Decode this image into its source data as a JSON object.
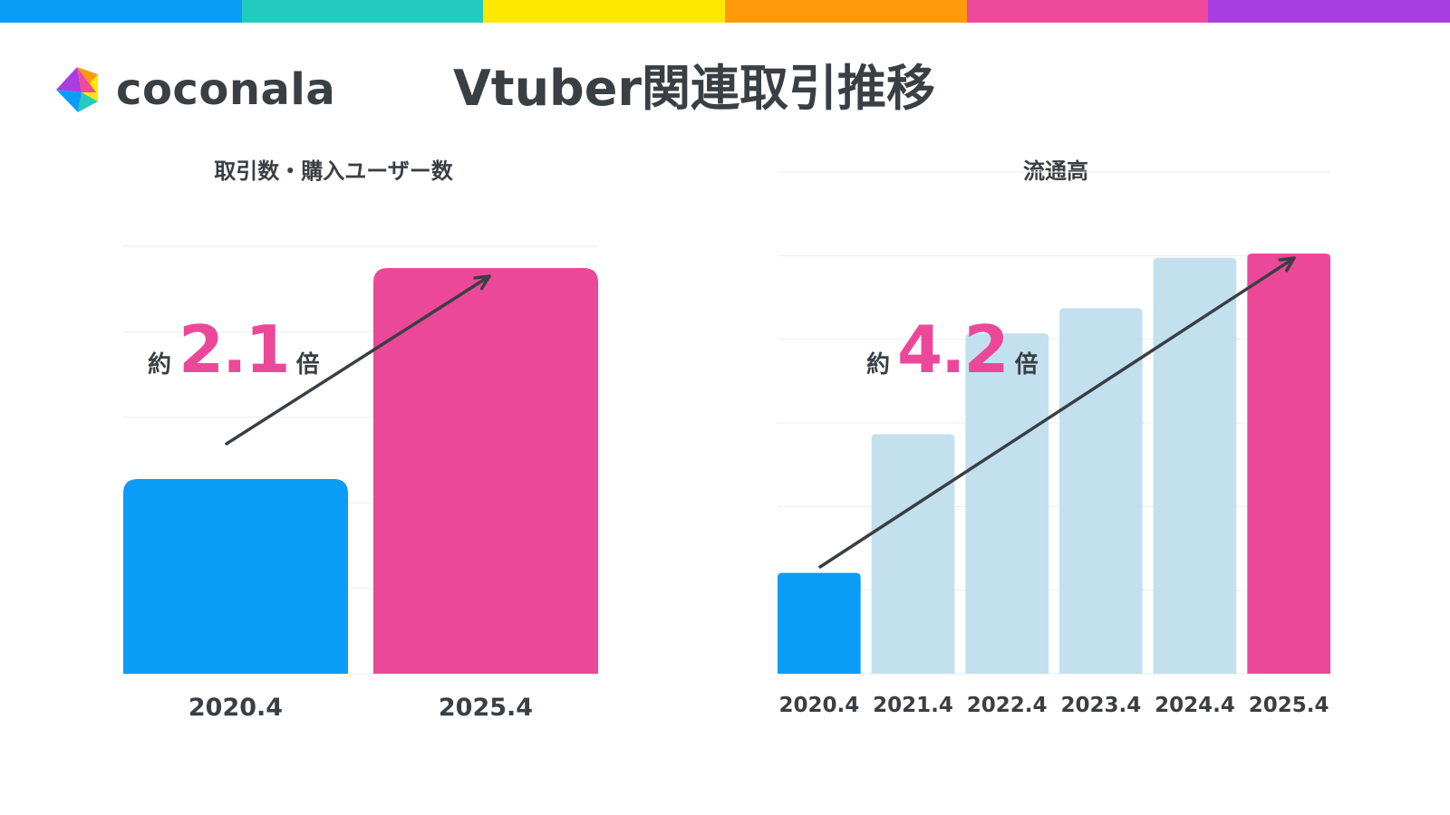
{
  "header": {
    "brand": "coconala",
    "title": "Vtuber関連取引推移",
    "strip_colors": [
      "#0b9cf7",
      "#22cbbd",
      "#ffe800",
      "#ff9a0a",
      "#ee4a9c",
      "#a93ee0"
    ],
    "logo_colors": [
      "#ff9a0a",
      "#ffe800",
      "#22cbbd",
      "#0b9cf7",
      "#a93ee0",
      "#ee4a9c"
    ]
  },
  "colors": {
    "blue": "#0b9cf7",
    "pink": "#ec4899",
    "light_blue": "#c3e0ef",
    "arrow": "#3a3f44",
    "grid": "#eeeeee"
  },
  "left_chart": {
    "multiplier": {
      "prefix": "約",
      "value": "2.1",
      "suffix": "倍"
    }
  },
  "right_chart": {
    "multiplier": {
      "prefix": "約",
      "value": "4.2",
      "suffix": "倍"
    }
  },
  "chart_data": [
    {
      "type": "bar",
      "title": "取引数・購入ユーザー数",
      "categories": [
        "2020.4",
        "2025.4"
      ],
      "values": [
        48,
        100
      ],
      "bar_colors": [
        "blue",
        "pink"
      ],
      "ylim": [
        0,
        100
      ],
      "grid": true,
      "xlabel": "",
      "ylabel": ""
    },
    {
      "type": "bar",
      "title": "流通高",
      "categories": [
        "2020.4",
        "2021.4",
        "2022.4",
        "2023.4",
        "2024.4",
        "2025.4"
      ],
      "values": [
        24,
        57,
        81,
        87,
        99,
        100
      ],
      "bar_colors": [
        "blue",
        "light_blue",
        "light_blue",
        "light_blue",
        "light_blue",
        "pink"
      ],
      "ylim": [
        0,
        100
      ],
      "grid": true,
      "xlabel": "",
      "ylabel": ""
    }
  ]
}
